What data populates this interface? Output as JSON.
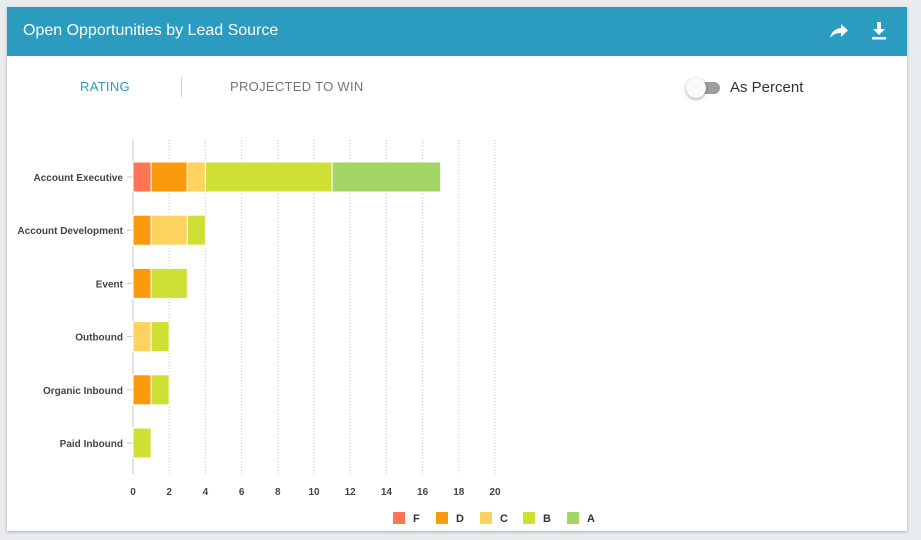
{
  "header": {
    "title": "Open Opportunities by Lead Source",
    "share_icon": "share-arrow-icon",
    "download_icon": "download-icon"
  },
  "tabs": [
    {
      "label": "RATING",
      "active": true
    },
    {
      "label": "PROJECTED TO WIN",
      "active": false
    }
  ],
  "toggle": {
    "label": "As Percent",
    "on": false
  },
  "colors": {
    "header_bg": "#2b9bc0",
    "F": "#ff7452",
    "D": "#f99b0c",
    "C": "#fdd25e",
    "B": "#cfe035",
    "A": "#a3d567"
  },
  "chart_data": {
    "type": "bar",
    "orientation": "horizontal",
    "stacked": true,
    "categories": [
      "Account Executive",
      "Account Development",
      "Event",
      "Outbound",
      "Organic Inbound",
      "Paid Inbound"
    ],
    "series": [
      {
        "name": "F",
        "color": "#ff7452",
        "values": [
          1,
          0,
          0,
          0,
          0,
          0
        ]
      },
      {
        "name": "D",
        "color": "#f99b0c",
        "values": [
          2,
          1,
          1,
          0,
          1,
          0
        ]
      },
      {
        "name": "C",
        "color": "#fdd25e",
        "values": [
          1,
          2,
          0,
          1,
          0,
          0
        ]
      },
      {
        "name": "B",
        "color": "#cfe035",
        "values": [
          7,
          1,
          2,
          1,
          1,
          1
        ]
      },
      {
        "name": "A",
        "color": "#a3d567",
        "values": [
          6,
          0,
          0,
          0,
          0,
          0
        ]
      }
    ],
    "xlim": [
      0,
      20
    ],
    "xticks": [
      "0",
      "2",
      "4",
      "6",
      "8",
      "10",
      "12",
      "14",
      "16",
      "18",
      "20"
    ],
    "grid": "vertical dotted",
    "legend": "bottom-center"
  }
}
